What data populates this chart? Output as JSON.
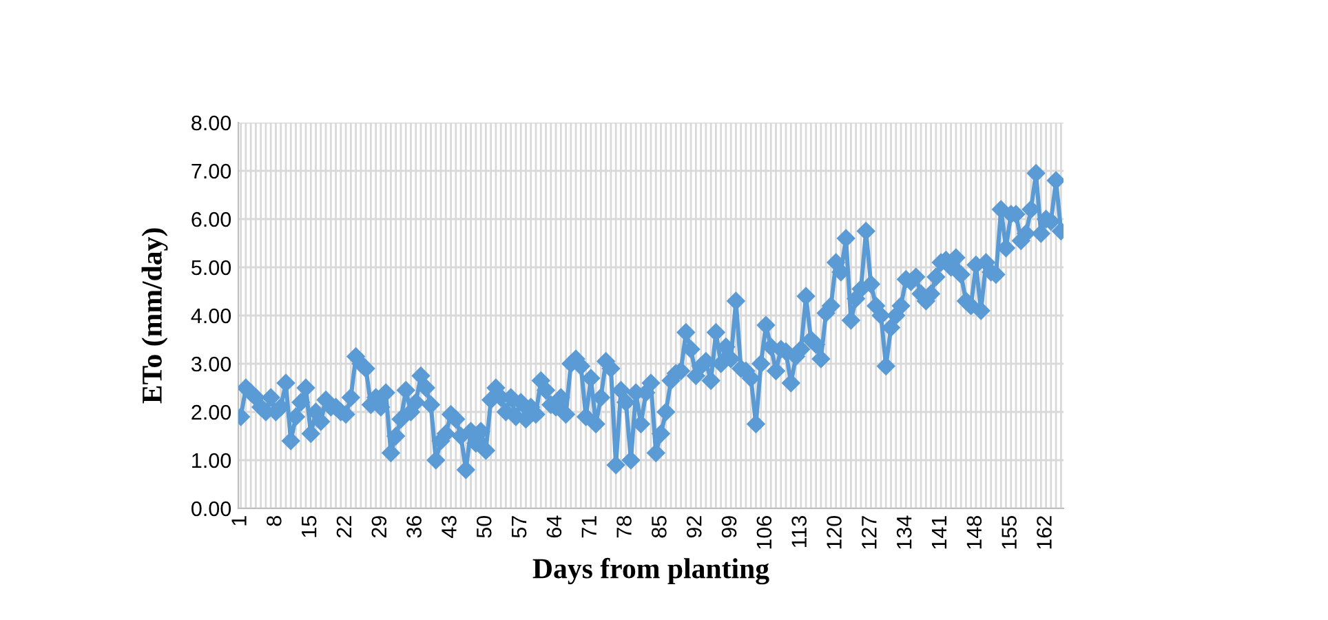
{
  "chart_data": {
    "type": "line",
    "xlabel": "Days from planting",
    "ylabel": "ETo (mm/day)",
    "categories": [
      "1",
      null,
      null,
      null,
      null,
      null,
      null,
      "8",
      null,
      null,
      null,
      null,
      null,
      null,
      "15",
      null,
      null,
      null,
      null,
      null,
      null,
      "22",
      null,
      null,
      null,
      null,
      null,
      null,
      "29",
      null,
      null,
      null,
      null,
      null,
      null,
      "36",
      null,
      null,
      null,
      null,
      null,
      null,
      "43",
      null,
      null,
      null,
      null,
      null,
      null,
      "50",
      null,
      null,
      null,
      null,
      null,
      null,
      "57",
      null,
      null,
      null,
      null,
      null,
      null,
      "64",
      null,
      null,
      null,
      null,
      null,
      null,
      "71",
      null,
      null,
      null,
      null,
      null,
      null,
      "78",
      null,
      null,
      null,
      null,
      null,
      null,
      "85",
      null,
      null,
      null,
      null,
      null,
      null,
      "92",
      null,
      null,
      null,
      null,
      null,
      null,
      "99",
      null,
      null,
      null,
      null,
      null,
      null,
      "106",
      null,
      null,
      null,
      null,
      null,
      null,
      "113",
      null,
      null,
      null,
      null,
      null,
      null,
      "120",
      null,
      null,
      null,
      null,
      null,
      null,
      "127",
      null,
      null,
      null,
      null,
      null,
      null,
      "134",
      null,
      null,
      null,
      null,
      null,
      null,
      "141",
      null,
      null,
      null,
      null,
      null,
      null,
      "148",
      null,
      null,
      null,
      null,
      null,
      null,
      "155",
      null,
      null,
      null,
      null,
      null,
      null,
      "162",
      null,
      null,
      null
    ],
    "series": [
      {
        "color": "#5b9bd5",
        "values": [
          1.9,
          2.5,
          2.4,
          2.3,
          2.1,
          2.0,
          2.3,
          2.0,
          2.1,
          2.6,
          1.4,
          1.9,
          2.2,
          2.5,
          1.55,
          2.0,
          1.8,
          2.25,
          2.1,
          2.1,
          2.0,
          1.95,
          2.3,
          3.15,
          3.0,
          2.9,
          2.15,
          2.3,
          2.1,
          2.4,
          1.15,
          1.5,
          1.85,
          2.45,
          2.0,
          2.2,
          2.75,
          2.5,
          2.15,
          1.0,
          1.4,
          1.55,
          1.95,
          1.85,
          1.5,
          0.8,
          1.6,
          1.35,
          1.6,
          1.2,
          2.25,
          2.5,
          2.3,
          2.0,
          2.3,
          1.9,
          2.2,
          1.85,
          2.1,
          1.95,
          2.65,
          2.45,
          2.15,
          2.1,
          2.3,
          1.95,
          3.0,
          3.1,
          2.95,
          1.9,
          2.7,
          1.75,
          2.3,
          3.05,
          2.9,
          0.9,
          2.45,
          2.2,
          1.0,
          2.4,
          1.75,
          2.4,
          2.6,
          1.15,
          1.55,
          2.0,
          2.65,
          2.8,
          2.85,
          3.65,
          3.3,
          2.75,
          2.95,
          3.05,
          2.65,
          3.65,
          3.0,
          3.35,
          3.1,
          4.3,
          2.9,
          2.85,
          2.7,
          1.75,
          3.0,
          3.8,
          3.35,
          2.85,
          3.3,
          3.25,
          2.6,
          3.15,
          3.3,
          4.4,
          3.5,
          3.4,
          3.1,
          4.05,
          4.2,
          5.1,
          4.9,
          5.6,
          3.9,
          4.35,
          4.55,
          5.75,
          4.65,
          4.2,
          4.0,
          2.95,
          3.75,
          4.0,
          4.2,
          4.75,
          4.7,
          4.8,
          4.45,
          4.3,
          4.45,
          4.8,
          5.1,
          5.15,
          5.0,
          5.2,
          4.85,
          4.3,
          4.2,
          5.05,
          4.1,
          5.1,
          4.9,
          4.85,
          6.2,
          5.4,
          6.1,
          6.1,
          5.55,
          5.7,
          6.2,
          6.95,
          5.7,
          6.0,
          5.95,
          6.8,
          5.75
        ]
      }
    ],
    "ylim": [
      0,
      8
    ],
    "yticks": [
      {
        "value": 0,
        "label": "0.00"
      },
      {
        "value": 1,
        "label": "1.00"
      },
      {
        "value": 2,
        "label": "2.00"
      },
      {
        "value": 3,
        "label": "3.00"
      },
      {
        "value": 4,
        "label": "4.00"
      },
      {
        "value": 5,
        "label": "5.00"
      },
      {
        "value": 6,
        "label": "6.00"
      },
      {
        "value": 7,
        "label": "7.00"
      },
      {
        "value": 8,
        "label": "8.00"
      }
    ],
    "grid": true,
    "marker": "diamond",
    "line_style": "solid"
  }
}
